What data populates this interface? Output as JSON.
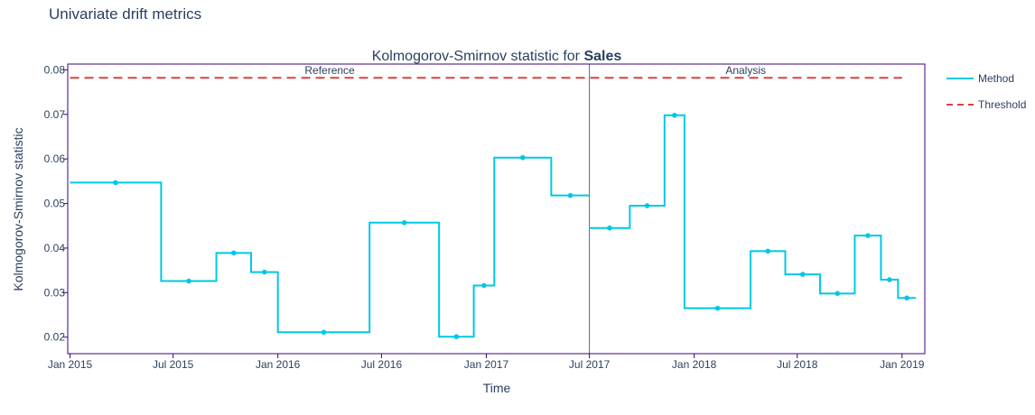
{
  "page": {
    "title": "Univariate drift metrics"
  },
  "chart_data": {
    "type": "line",
    "title_prefix": "Kolmogorov-Smirnov statistic for ",
    "title_bold": "Sales",
    "xlabel": "Time",
    "ylabel": "Kolmogorov-Smirnov statistic",
    "xlim": [
      "2014-12-28",
      "2019-02-10"
    ],
    "ylim": [
      0.0163,
      0.0813
    ],
    "x_ticks": [
      {
        "date": "2015-01-01",
        "label": "Jan 2015"
      },
      {
        "date": "2015-07-01",
        "label": "Jul 2015"
      },
      {
        "date": "2016-01-01",
        "label": "Jan 2016"
      },
      {
        "date": "2016-07-01",
        "label": "Jul 2016"
      },
      {
        "date": "2017-01-01",
        "label": "Jan 2017"
      },
      {
        "date": "2017-07-01",
        "label": "Jul 2017"
      },
      {
        "date": "2018-01-01",
        "label": "Jan 2018"
      },
      {
        "date": "2018-07-01",
        "label": "Jul 2018"
      },
      {
        "date": "2019-01-01",
        "label": "Jan 2019"
      }
    ],
    "y_ticks": [
      {
        "value": 0.02,
        "label": "0.02"
      },
      {
        "value": 0.03,
        "label": "0.03"
      },
      {
        "value": 0.04,
        "label": "0.04"
      },
      {
        "value": 0.05,
        "label": "0.05"
      },
      {
        "value": 0.06,
        "label": "0.06"
      },
      {
        "value": 0.07,
        "label": "0.07"
      },
      {
        "value": 0.08,
        "label": "0.08"
      }
    ],
    "grid": false,
    "legend_position": "right",
    "colors": {
      "method": "#00c8e5",
      "threshold": "#dd4040",
      "border": "#3b0280",
      "divider": "#666666"
    },
    "periods": [
      {
        "label": "Reference",
        "start": "2015-01-01",
        "end": "2017-07-01"
      },
      {
        "label": "Analysis",
        "start": "2017-07-01",
        "end": "2019-01-01"
      }
    ],
    "divider_date": "2017-07-01",
    "threshold": {
      "name": "Threshold",
      "value": 0.0782,
      "start": "2015-01-01",
      "end": "2019-01-01"
    },
    "series": [
      {
        "name": "Method",
        "steps": [
          {
            "start": "2015-01-01",
            "end": "2015-06-10",
            "value": 0.0547
          },
          {
            "start": "2015-06-10",
            "end": "2015-09-15",
            "value": 0.0326
          },
          {
            "start": "2015-09-15",
            "end": "2015-11-15",
            "value": 0.0389
          },
          {
            "start": "2015-11-15",
            "end": "2016-01-01",
            "value": 0.0346
          },
          {
            "start": "2016-01-01",
            "end": "2016-06-10",
            "value": 0.0211
          },
          {
            "start": "2016-06-10",
            "end": "2016-10-10",
            "value": 0.0457
          },
          {
            "start": "2016-10-10",
            "end": "2016-12-10",
            "value": 0.0201
          },
          {
            "start": "2016-12-10",
            "end": "2017-01-15",
            "value": 0.0316
          },
          {
            "start": "2017-01-15",
            "end": "2017-04-25",
            "value": 0.0603
          },
          {
            "start": "2017-04-25",
            "end": "2017-07-01",
            "value": 0.0518
          },
          {
            "start": "2017-07-01",
            "end": "2017-09-10",
            "value": 0.0445
          },
          {
            "start": "2017-09-10",
            "end": "2017-11-10",
            "value": 0.0495
          },
          {
            "start": "2017-11-10",
            "end": "2017-12-15",
            "value": 0.0698
          },
          {
            "start": "2017-12-15",
            "end": "2018-04-10",
            "value": 0.0265
          },
          {
            "start": "2018-04-10",
            "end": "2018-06-10",
            "value": 0.0393
          },
          {
            "start": "2018-06-10",
            "end": "2018-08-10",
            "value": 0.0341
          },
          {
            "start": "2018-08-10",
            "end": "2018-10-10",
            "value": 0.0298
          },
          {
            "start": "2018-10-10",
            "end": "2018-11-25",
            "value": 0.0428
          },
          {
            "start": "2018-11-25",
            "end": "2018-12-25",
            "value": 0.0329
          },
          {
            "start": "2018-12-25",
            "end": "2019-01-25",
            "value": 0.0288
          }
        ]
      }
    ]
  }
}
